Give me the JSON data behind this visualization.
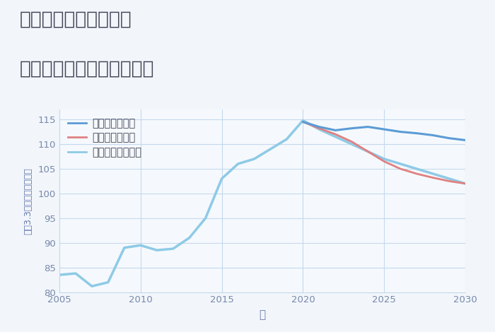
{
  "title_line1": "兵庫県姫路市藤ヶ台の",
  "title_line2": "中古マンションの価格推移",
  "xlabel": "年",
  "ylabel": "坪（3.3㎡）単価（万円）",
  "xlim": [
    2005,
    2030
  ],
  "ylim": [
    80,
    117
  ],
  "yticks": [
    80,
    85,
    90,
    95,
    100,
    105,
    110,
    115
  ],
  "xticks": [
    2005,
    2010,
    2015,
    2020,
    2025,
    2030
  ],
  "bg_color": "#f2f6fb",
  "plot_bg_color": "#f5f9fd",
  "grid_color": "#c5d8ec",
  "scenarios": {
    "good": {
      "label": "グッドシナリオ",
      "color": "#5b9bd5",
      "linewidth": 2.2,
      "zorder": 4,
      "years": [
        2020,
        2021,
        2022,
        2023,
        2024,
        2025,
        2026,
        2027,
        2028,
        2029,
        2030
      ],
      "values": [
        114.5,
        113.5,
        112.8,
        113.2,
        113.5,
        113.0,
        112.5,
        112.2,
        111.8,
        111.2,
        110.8
      ]
    },
    "bad": {
      "label": "バッドシナリオ",
      "color": "#e08080",
      "linewidth": 2.0,
      "zorder": 3,
      "years": [
        2020,
        2021,
        2022,
        2023,
        2024,
        2025,
        2026,
        2027,
        2028,
        2029,
        2030
      ],
      "values": [
        114.5,
        113.2,
        112.0,
        110.5,
        108.5,
        106.5,
        105.0,
        104.0,
        103.2,
        102.5,
        102.0
      ]
    },
    "normal": {
      "label": "ノーマルシナリオ",
      "color": "#8ecae6",
      "linewidth": 2.5,
      "zorder": 2,
      "years": [
        2005,
        2006,
        2007,
        2008,
        2009,
        2010,
        2011,
        2012,
        2013,
        2014,
        2015,
        2016,
        2017,
        2018,
        2019,
        2020,
        2021,
        2022,
        2023,
        2024,
        2025,
        2026,
        2027,
        2028,
        2029,
        2030
      ],
      "values": [
        83.5,
        83.8,
        81.2,
        82.0,
        89.0,
        89.5,
        88.5,
        88.8,
        91.0,
        95.0,
        103.0,
        106.0,
        107.0,
        109.0,
        111.0,
        114.8,
        113.0,
        111.5,
        110.0,
        108.5,
        107.0,
        106.0,
        105.0,
        104.0,
        103.0,
        102.0
      ]
    }
  },
  "title_color": "#444455",
  "title_fontsize": 19,
  "axis_label_color": "#6677aa",
  "tick_color": "#7788aa",
  "legend_fontsize": 10.5
}
